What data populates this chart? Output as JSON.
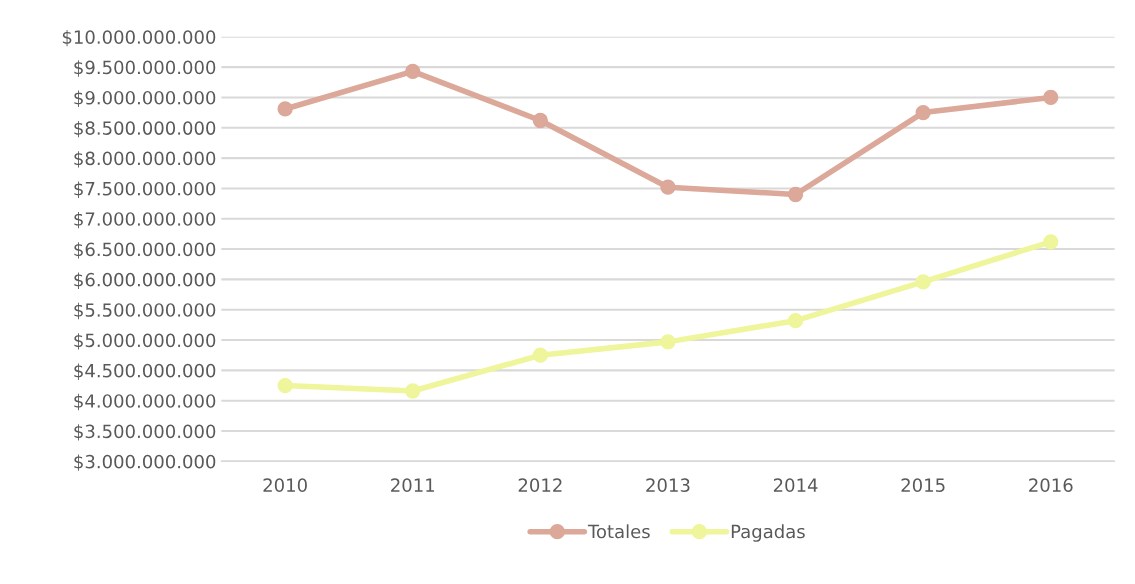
{
  "chart_data": {
    "type": "line",
    "categories": [
      "2010",
      "2011",
      "2012",
      "2013",
      "2014",
      "2015",
      "2016"
    ],
    "series": [
      {
        "name": "Totales",
        "color": "#dba899",
        "values": [
          8810000000,
          9430000000,
          8620000000,
          7520000000,
          7400000000,
          8750000000,
          9000000000
        ]
      },
      {
        "name": "Pagadas",
        "color": "#eff59a",
        "values": [
          4250000000,
          4160000000,
          4750000000,
          4970000000,
          5320000000,
          5960000000,
          6620000000
        ]
      }
    ],
    "ylim": [
      3000000000,
      10000000000
    ],
    "yticks": [
      {
        "value": 3000000000,
        "label": "$3.000.000.000"
      },
      {
        "value": 3500000000,
        "label": "$3.500.000.000"
      },
      {
        "value": 4000000000,
        "label": "$4.000.000.000"
      },
      {
        "value": 4500000000,
        "label": "$4.500.000.000"
      },
      {
        "value": 5000000000,
        "label": "$5.000.000.000"
      },
      {
        "value": 5500000000,
        "label": "$5.500.000.000"
      },
      {
        "value": 6000000000,
        "label": "$6.000.000.000"
      },
      {
        "value": 6500000000,
        "label": "$6.500.000.000"
      },
      {
        "value": 7000000000,
        "label": "$7.000.000.000"
      },
      {
        "value": 7500000000,
        "label": "$7.500.000.000"
      },
      {
        "value": 8000000000,
        "label": "$8.000.000.000"
      },
      {
        "value": 8500000000,
        "label": "$8.500.000.000"
      },
      {
        "value": 9000000000,
        "label": "$9.000.000.000"
      },
      {
        "value": 9500000000,
        "label": "$9.500.000.000"
      },
      {
        "value": 10000000000,
        "label": "$10.000.000.000"
      }
    ],
    "grid": "y",
    "legend": "bottom",
    "marker": "circle",
    "line_style": "solid"
  }
}
